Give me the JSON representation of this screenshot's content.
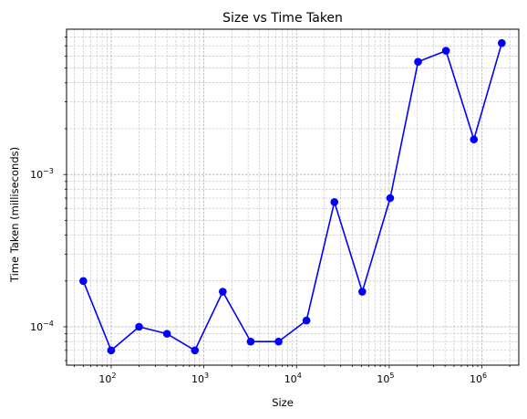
{
  "chart_data": {
    "type": "line",
    "title": "Size vs Time Taken",
    "xlabel": "Size",
    "ylabel": "Time Taken (milliseconds)",
    "xscale": "log",
    "yscale": "log",
    "xlim": [
      33,
      2500000
    ],
    "ylim": [
      5.6e-05,
      0.009
    ],
    "grid": true,
    "grid_style": "major and minor, dashed",
    "marker": "circle",
    "color": "#0000ff",
    "x_ticks": [
      {
        "base": "10",
        "exp": "2",
        "value": 100
      },
      {
        "base": "10",
        "exp": "3",
        "value": 1000
      },
      {
        "base": "10",
        "exp": "4",
        "value": 10000
      },
      {
        "base": "10",
        "exp": "5",
        "value": 100000
      },
      {
        "base": "10",
        "exp": "6",
        "value": 1000000
      }
    ],
    "y_ticks": [
      {
        "base": "10",
        "exp": "−4",
        "value": 0.0001
      },
      {
        "base": "10",
        "exp": "−3",
        "value": 0.001
      }
    ],
    "series": [
      {
        "x": [
          50,
          100,
          200,
          400,
          800,
          1600,
          3200,
          6400,
          12800,
          25600,
          51200,
          102400,
          204800,
          409600,
          819200,
          1638400
        ],
        "y": [
          0.0002,
          7e-05,
          0.0001,
          9e-05,
          7e-05,
          0.00017,
          8e-05,
          8e-05,
          0.00011,
          0.00066,
          0.00017,
          0.0007,
          0.0055,
          0.0065,
          0.0017,
          0.0073
        ]
      }
    ]
  }
}
